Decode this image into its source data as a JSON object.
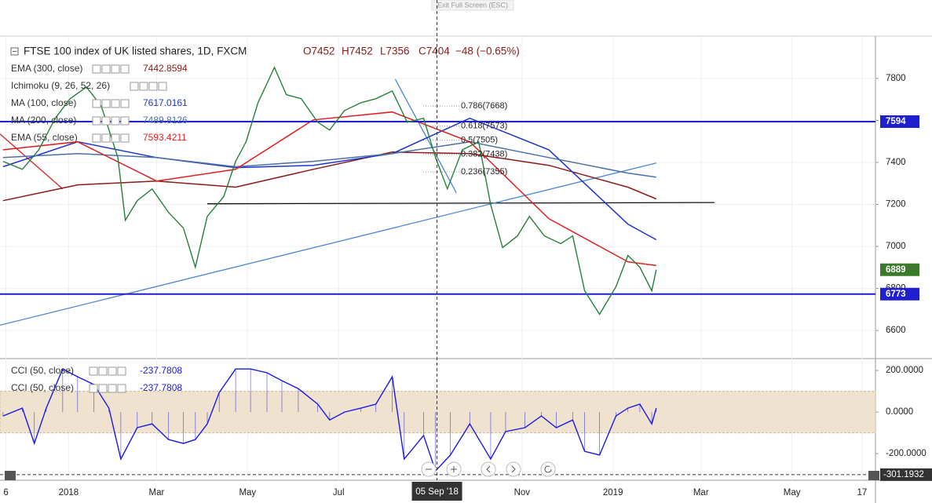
{
  "exit_fullscreen": "Exit Full Screen (ESC)",
  "chart_data": [
    {
      "type": "line",
      "title": "FTSE 100 index of UK listed shares, 1D, FXCM",
      "open_label": "O7452",
      "high_label": "H7452",
      "low_label": "L7356",
      "close_label": "C7404",
      "change_label": "−48 (−0.65%)",
      "color": "#26803a",
      "x": [
        -44,
        -31,
        -20,
        -9,
        1,
        12,
        22,
        33,
        38,
        46,
        56,
        67,
        77,
        85,
        93,
        104,
        112,
        119,
        127,
        138,
        146,
        156,
        167,
        175,
        185,
        196,
        206,
        217,
        227,
        238,
        246,
        254,
        264,
        275,
        283,
        291,
        301,
        309,
        319,
        330,
        338,
        346,
        356,
        367,
        375,
        383,
        391,
        394
      ],
      "values": [
        7405,
        7367,
        7460,
        7610,
        7703,
        7759,
        7666,
        7423,
        7125,
        7218,
        7274,
        7162,
        7087,
        6901,
        7143,
        7237,
        7405,
        7498,
        7684,
        7852,
        7722,
        7703,
        7591,
        7554,
        7647,
        7684,
        7703,
        7740,
        7591,
        7610,
        7423,
        7274,
        7460,
        7498,
        7199,
        6994,
        7050,
        7143,
        7050,
        7013,
        7050,
        6789,
        6677,
        6808,
        6957,
        6901,
        6789,
        6889
      ],
      "indicators": [
        {
          "name": "EMA (300, close)",
          "last_value": "7442.8594",
          "color": "#8b1a1a",
          "x": [
            -44,
            6,
            59,
            112,
            164,
            217,
            269,
            322,
            375,
            394
          ],
          "values": [
            7218,
            7293,
            7311,
            7282,
            7367,
            7449,
            7442,
            7386,
            7282,
            7226
          ]
        },
        {
          "name": "Ichimoku (9, 26, 52, 26)",
          "color": "#3a9a9a"
        },
        {
          "name": "MA (100, close)",
          "last_value": "7617.0161",
          "color": "#1f35c8",
          "x": [
            -44,
            6,
            59,
            112,
            164,
            217,
            269,
            322,
            375,
            394
          ],
          "values": [
            7379,
            7498,
            7423,
            7375,
            7386,
            7442,
            7610,
            7460,
            7106,
            7032
          ]
        },
        {
          "name": "MA (200, close)",
          "last_value": "7489.8126",
          "color": "#4a70a8",
          "x": [
            -44,
            6,
            59,
            112,
            164,
            217,
            269,
            322,
            375,
            394
          ],
          "values": [
            7423,
            7442,
            7423,
            7379,
            7405,
            7442,
            7498,
            7423,
            7349,
            7330
          ]
        },
        {
          "name": "EMA (55, close)",
          "last_value": "7593.4211",
          "color": "#e02020",
          "x": [
            -44,
            6,
            59,
            112,
            164,
            217,
            269,
            322,
            375,
            394
          ],
          "values": [
            7460,
            7498,
            7311,
            7367,
            7602,
            7640,
            7498,
            7132,
            6927,
            6909
          ]
        }
      ],
      "levels": [
        7594,
        6773
      ],
      "level_color": "#1f1fd0",
      "last_price": 6889,
      "last_price_color": "#3a7a2a",
      "trendlines": [
        {
          "color": "#111111",
          "x": [
            93,
            433
          ],
          "values": [
            7203,
            7209
          ]
        },
        {
          "color": "#4a86d8",
          "x": [
            -46,
            394
          ],
          "values": [
            6625,
            7397
          ]
        },
        {
          "color": "#e02020",
          "x": [
            -46,
            -4
          ],
          "values": [
            7535,
            7274
          ]
        },
        {
          "color": "#4a86d8",
          "x": [
            219,
            260
          ],
          "values": [
            7796,
            7255
          ]
        }
      ],
      "fib_levels": [
        {
          "value": 7668,
          "label": "0.786(7668)"
        },
        {
          "value": 7573,
          "label": "0.618(7573)"
        },
        {
          "value": 7505,
          "label": "0.5(7505)"
        },
        {
          "value": 7438,
          "label": "0.382(7438)"
        },
        {
          "value": 7355,
          "label": "0.236(7355)"
        }
      ],
      "xlim": [
        -46,
        541
      ],
      "ylim": [
        6466,
        8001
      ],
      "yticks": [
        6600,
        6800,
        7000,
        7200,
        7400,
        7600,
        7800
      ],
      "xticks": [
        {
          "value": -42,
          "label": "6"
        },
        {
          "value": 0,
          "label": "2018"
        },
        {
          "value": 59,
          "label": "Mar"
        },
        {
          "value": 120,
          "label": "May"
        },
        {
          "value": 181,
          "label": "Jul"
        },
        {
          "value": 304,
          "label": "Nov"
        },
        {
          "value": 365,
          "label": "2019"
        },
        {
          "value": 424,
          "label": "Mar"
        },
        {
          "value": 485,
          "label": "May"
        },
        {
          "value": 532,
          "label": "17"
        }
      ],
      "crosshair_x": {
        "value": 247,
        "label": "05 Sep '18"
      },
      "grid": true
    },
    {
      "type": "line",
      "legend": [
        {
          "name": "CCI (50, close)",
          "last_value": "-237.7808"
        },
        {
          "name": "CCI (50, close)",
          "last_value": "-237.7808"
        }
      ],
      "color": "#1a1ae6",
      "x": [
        -44,
        -31,
        -23,
        -15,
        -4,
        6,
        17,
        27,
        35,
        46,
        56,
        67,
        77,
        85,
        93,
        101,
        112,
        122,
        133,
        143,
        154,
        167,
        175,
        185,
        196,
        206,
        217,
        225,
        238,
        246,
        256,
        269,
        283,
        293,
        306,
        317,
        327,
        338,
        346,
        356,
        367,
        375,
        383,
        391,
        394
      ],
      "values": [
        -19,
        19,
        -151,
        19,
        207,
        170,
        132,
        19,
        -226,
        -75,
        -57,
        -132,
        -151,
        -132,
        -57,
        94,
        207,
        207,
        189,
        151,
        113,
        38,
        -38,
        0,
        19,
        38,
        170,
        -226,
        -113,
        -283,
        -207,
        -57,
        -226,
        -94,
        -75,
        -19,
        -75,
        -38,
        -189,
        -207,
        -19,
        19,
        38,
        -57,
        19
      ],
      "band": [
        -100,
        100
      ],
      "band_color": "#efe3cf",
      "xlim": [
        -46,
        541
      ],
      "ylim": [
        -328,
        257
      ],
      "yticks": [
        {
          "value": -200,
          "label": "-200.0000"
        },
        {
          "value": 0,
          "label": "0.0000"
        },
        {
          "value": 200,
          "label": "200.0000"
        }
      ],
      "crosshair_value": -301.1932
    }
  ]
}
